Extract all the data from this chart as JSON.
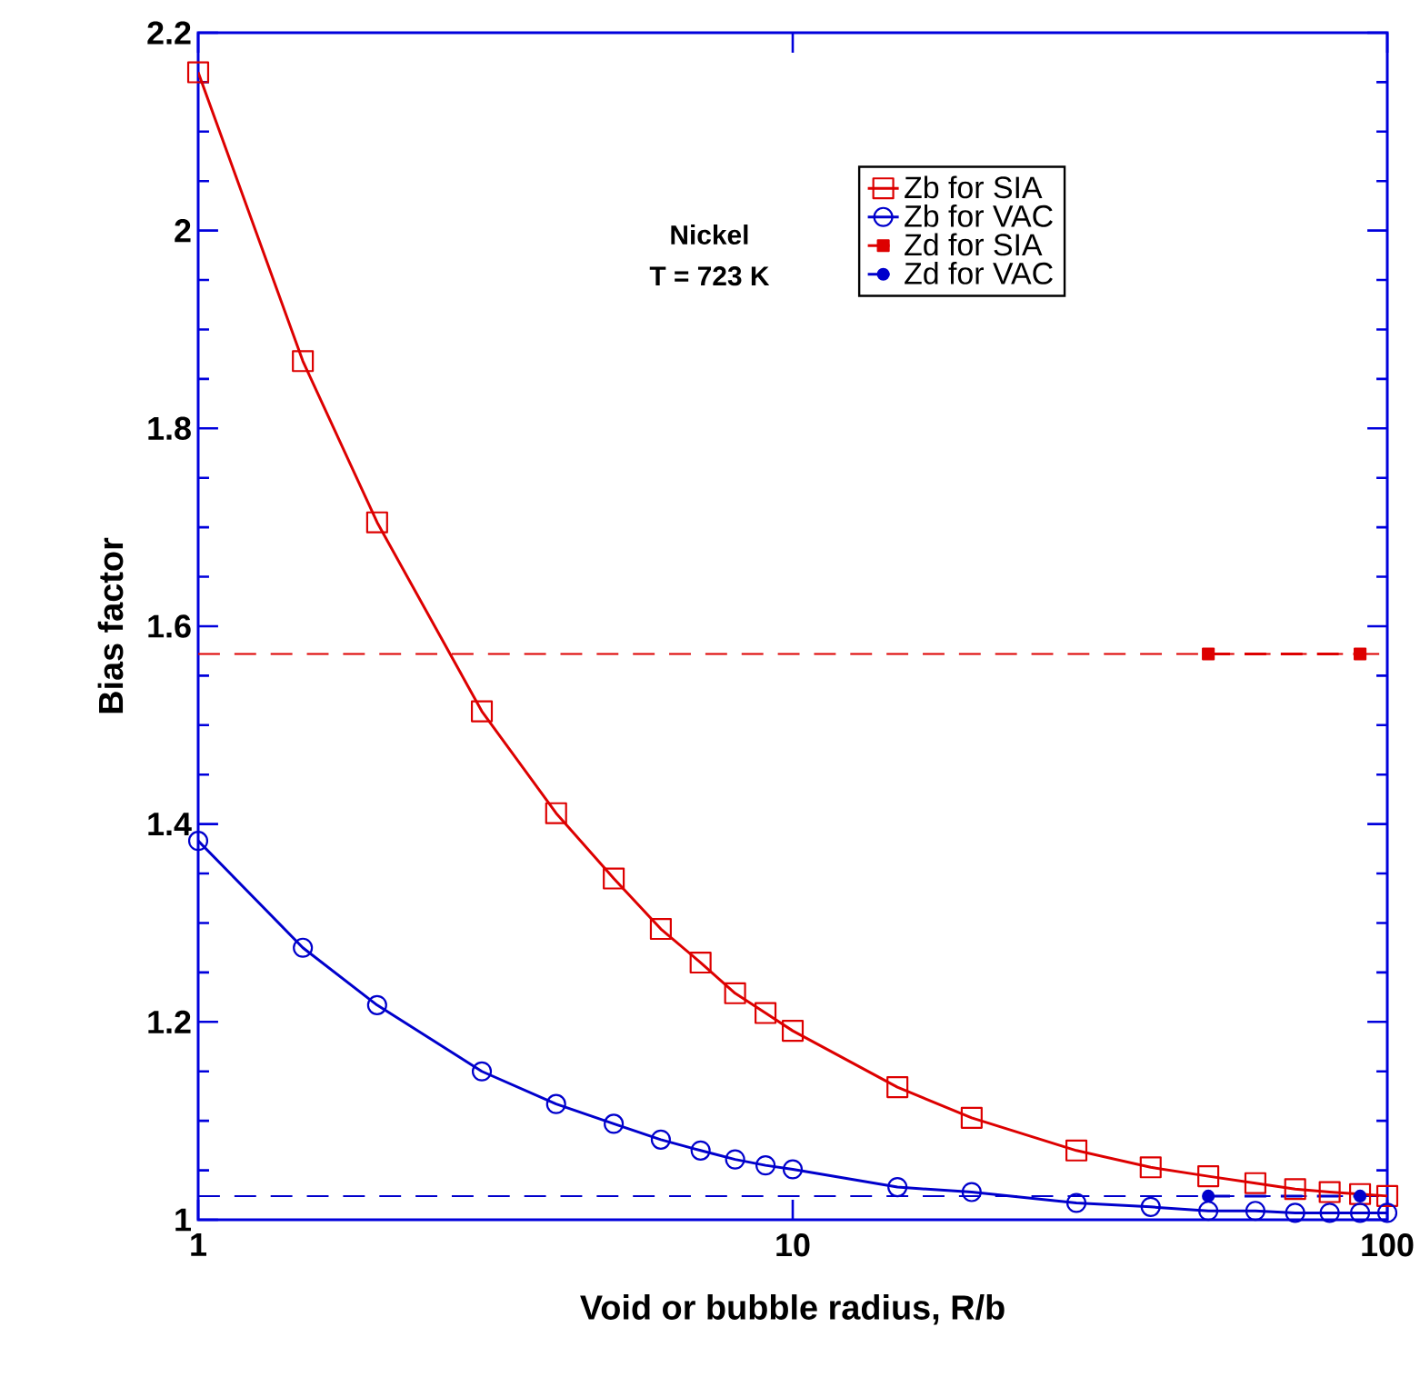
{
  "chart_data": {
    "type": "line",
    "xlabel": "Void or bubble radius, R/b",
    "ylabel": "Bias factor",
    "log": "x",
    "xlim": [
      1,
      100
    ],
    "ylim": [
      1,
      2.2
    ],
    "xticks": [
      1,
      10,
      100
    ],
    "yticks": [
      1,
      1.2,
      1.4,
      1.6,
      1.8,
      2,
      2.2
    ],
    "grid": false,
    "legend": "top right",
    "annotations": [
      "Nickel",
      "T = 723 K"
    ],
    "ref_lines": [
      {
        "axis": "y",
        "value": 1.572,
        "color": "#dd0000",
        "line_style": "dashed"
      },
      {
        "axis": "y",
        "value": 1.024,
        "color": "#0000cc",
        "line_style": "dashed"
      }
    ],
    "series": [
      {
        "name": "Zb for SIA",
        "color": "#dd0000",
        "marker": "square",
        "line_style": "solid",
        "x": [
          1,
          1.5,
          2,
          3,
          4,
          5,
          6,
          7,
          8,
          9,
          10,
          15,
          20,
          30,
          40,
          50,
          60,
          70,
          80,
          90,
          100
        ],
        "values": [
          2.16,
          1.868,
          1.705,
          1.514,
          1.411,
          1.345,
          1.294,
          1.26,
          1.229,
          1.209,
          1.191,
          1.134,
          1.103,
          1.07,
          1.053,
          1.044,
          1.037,
          1.031,
          1.028,
          1.026,
          1.024
        ]
      },
      {
        "name": "Zb for VAC",
        "color": "#0000cc",
        "marker": "circle",
        "line_style": "solid",
        "x": [
          1,
          1.5,
          2,
          3,
          4,
          5,
          6,
          7,
          8,
          9,
          10,
          15,
          20,
          30,
          40,
          50,
          60,
          70,
          80,
          90,
          100
        ],
        "values": [
          1.383,
          1.275,
          1.217,
          1.15,
          1.117,
          1.097,
          1.081,
          1.07,
          1.061,
          1.055,
          1.051,
          1.033,
          1.028,
          1.017,
          1.013,
          1.009,
          1.009,
          1.007,
          1.007,
          1.007,
          1.007
        ]
      },
      {
        "name": "Zd for SIA",
        "color": "#dd0000",
        "marker": "square",
        "line_style": "dashed",
        "x": [
          50,
          90
        ],
        "values": [
          1.572,
          1.572
        ]
      },
      {
        "name": "Zd for VAC",
        "color": "#0000cc",
        "marker": "circle",
        "line_style": "dashed",
        "x": [
          50,
          90
        ],
        "values": [
          1.024,
          1.024
        ]
      }
    ]
  }
}
